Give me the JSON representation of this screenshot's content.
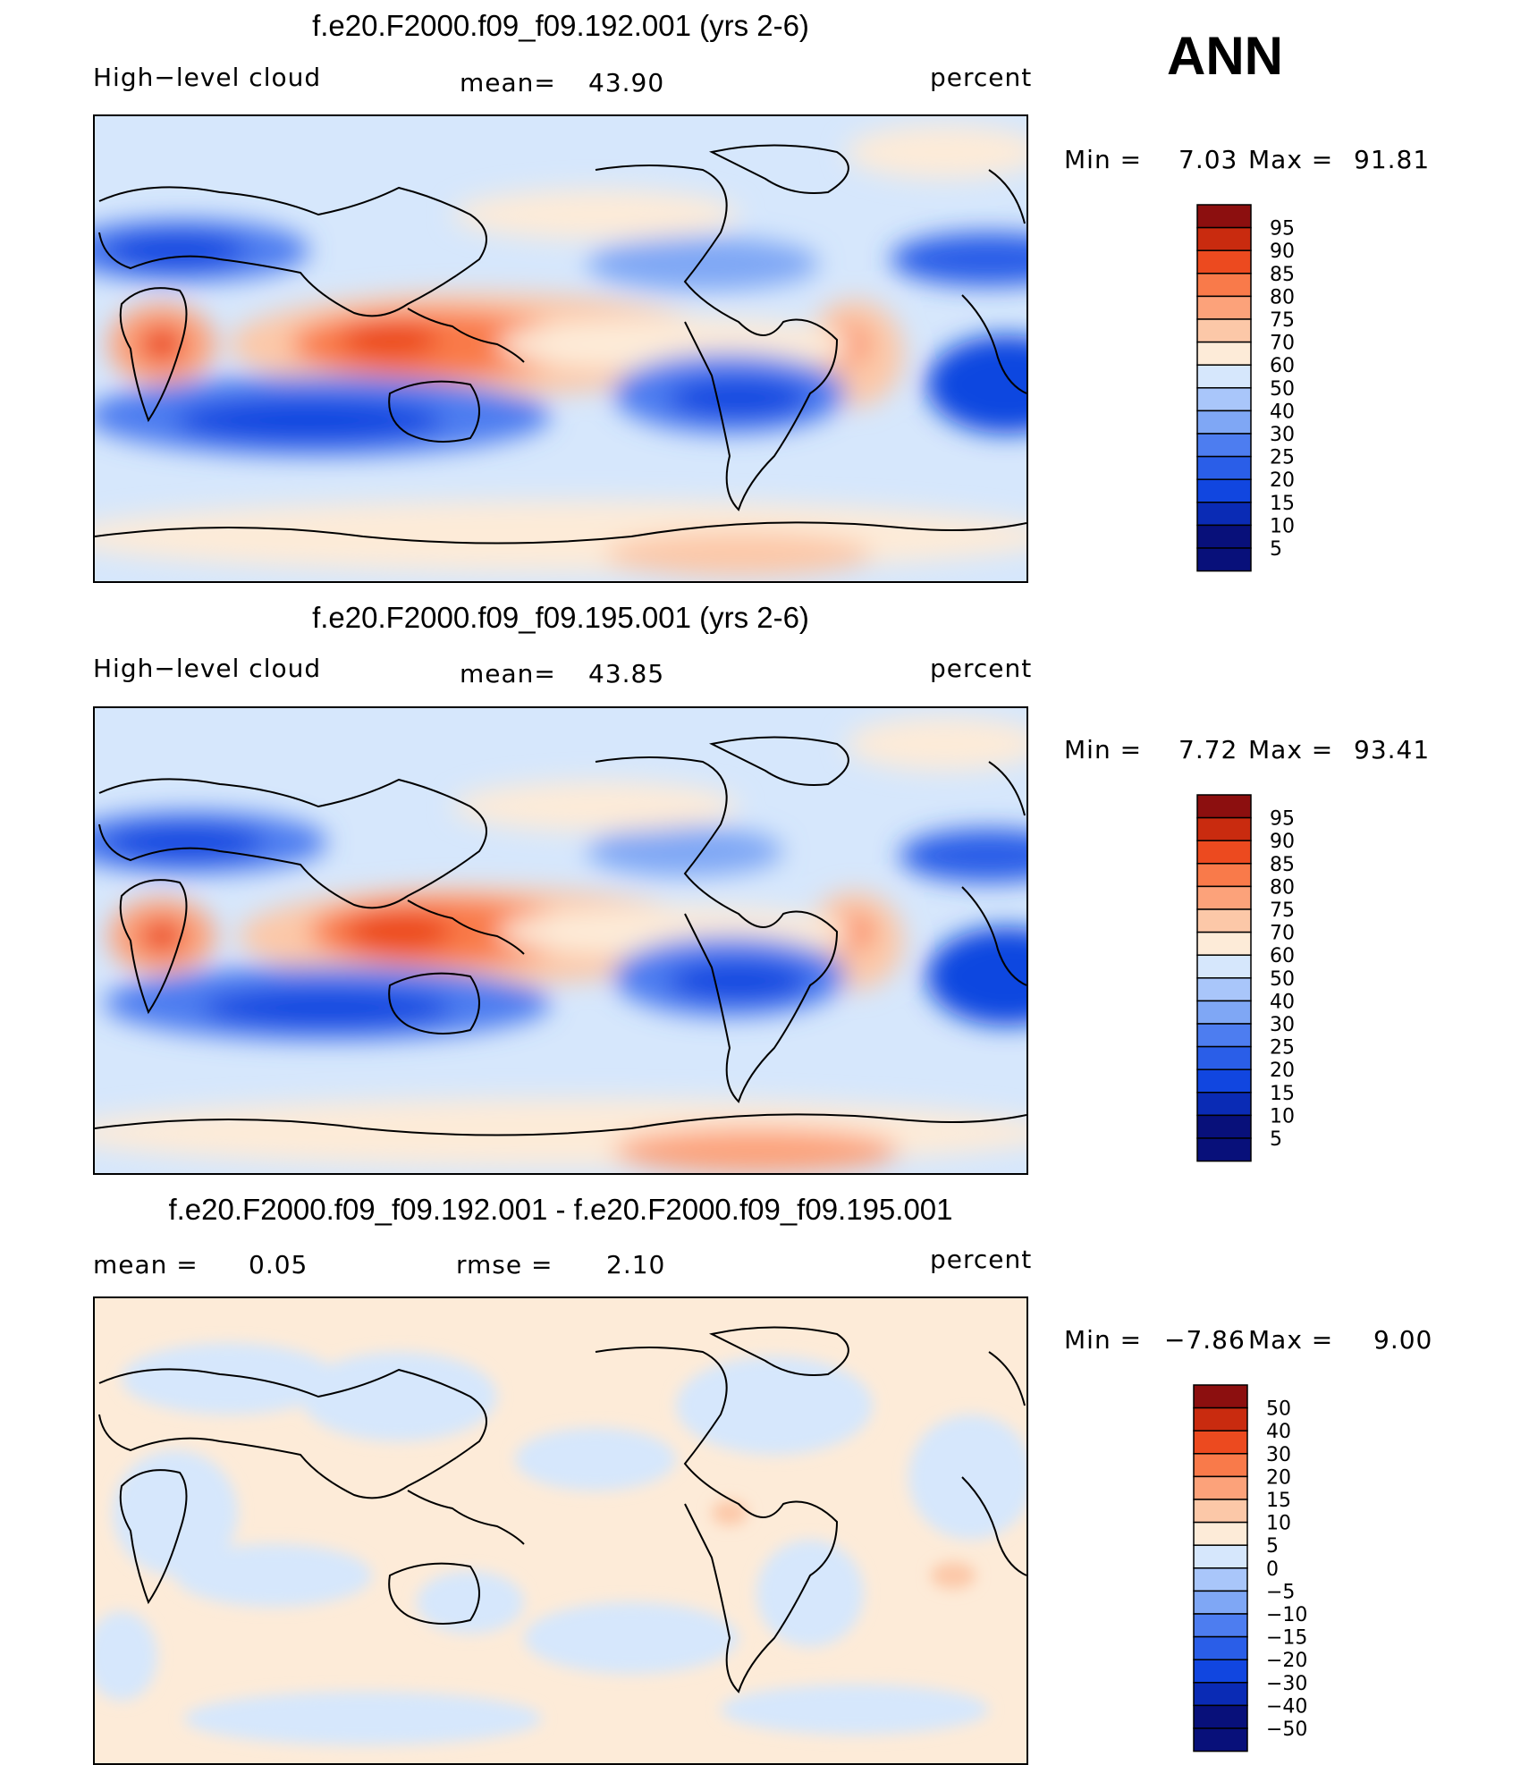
{
  "season": "ANN",
  "colors": {
    "abs_scale": [
      "#08107a",
      "#0a2bb5",
      "#1146e0",
      "#2a5ee8",
      "#4d7df0",
      "#7fa7f5",
      "#a9c6fa",
      "#d6e7fc",
      "#fdebd8",
      "#fcc8a8",
      "#fca27a",
      "#f97a4a",
      "#ec4a1f",
      "#c92b0f",
      "#8c0f0f"
    ],
    "coast": "#000000"
  },
  "chart_data": [
    {
      "type": "heatmap",
      "title": "f.e20.F2000.f09_f09.192.001 (yrs 2-6)",
      "variable": "High−level cloud",
      "mean_label": "mean=",
      "mean_value": "43.90",
      "units": "percent",
      "min_label": "Min =",
      "min_value": "7.03",
      "max_label": "Max =",
      "max_value": "91.81",
      "levels": [
        "95",
        "90",
        "85",
        "80",
        "75",
        "70",
        "60",
        "50",
        "40",
        "30",
        "25",
        "20",
        "15",
        "10",
        "5"
      ],
      "base_value": 48,
      "x_range": [
        0,
        360
      ],
      "y_range": [
        -90,
        90
      ]
    },
    {
      "type": "heatmap",
      "title": "f.e20.F2000.f09_f09.195.001 (yrs 2-6)",
      "variable": "High−level cloud",
      "mean_label": "mean=",
      "mean_value": "43.85",
      "units": "percent",
      "min_label": "Min =",
      "min_value": "7.72",
      "max_label": "Max =",
      "max_value": "93.41",
      "levels": [
        "95",
        "90",
        "85",
        "80",
        "75",
        "70",
        "60",
        "50",
        "40",
        "30",
        "25",
        "20",
        "15",
        "10",
        "5"
      ],
      "base_value": 48,
      "x_range": [
        0,
        360
      ],
      "y_range": [
        -90,
        90
      ]
    },
    {
      "type": "heatmap",
      "title": "f.e20.F2000.f09_f09.192.001 - f.e20.F2000.f09_f09.195.001",
      "mean_label": "mean =",
      "mean_value": "0.05",
      "rmse_label": "rmse =",
      "rmse_value": "2.10",
      "units": "percent",
      "min_label": "Min =",
      "min_value": "−7.86",
      "max_label": "Max =",
      "max_value": "9.00",
      "levels": [
        "50",
        "40",
        "30",
        "20",
        "15",
        "10",
        "5",
        "0",
        "−5",
        "−10",
        "−15",
        "−20",
        "−30",
        "−40",
        "−50"
      ],
      "x_range": [
        0,
        360
      ],
      "y_range": [
        -90,
        90
      ]
    }
  ]
}
